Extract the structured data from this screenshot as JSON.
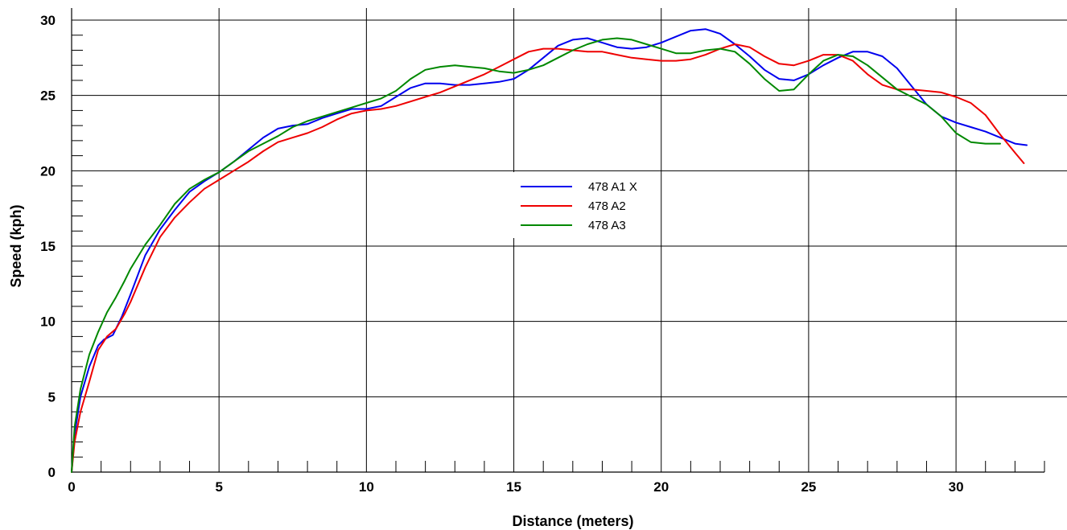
{
  "chart_data": {
    "type": "line",
    "title": "",
    "xlabel": "Distance (meters)",
    "ylabel": "Speed (kph)",
    "xlim": [
      0,
      33
    ],
    "ylim": [
      0,
      30
    ],
    "x_ticks": [
      0,
      5,
      10,
      15,
      20,
      25,
      30
    ],
    "y_ticks": [
      0,
      5,
      10,
      15,
      20,
      25,
      30
    ],
    "grid": true,
    "legend_position": "center",
    "series": [
      {
        "name": "478 A1 X",
        "color": "#0000ee",
        "points": [
          [
            0,
            0
          ],
          [
            0.1,
            2.5
          ],
          [
            0.3,
            5
          ],
          [
            0.6,
            7
          ],
          [
            0.9,
            8.4
          ],
          [
            1.1,
            8.8
          ],
          [
            1.4,
            9.1
          ],
          [
            1.7,
            10.3
          ],
          [
            2,
            11.8
          ],
          [
            2.5,
            14.4
          ],
          [
            3,
            16.1
          ],
          [
            3.5,
            17.4
          ],
          [
            4,
            18.6
          ],
          [
            4.5,
            19.3
          ],
          [
            5,
            19.9
          ],
          [
            5.5,
            20.6
          ],
          [
            6,
            21.4
          ],
          [
            6.5,
            22.2
          ],
          [
            7,
            22.8
          ],
          [
            7.5,
            23
          ],
          [
            8,
            23.1
          ],
          [
            8.5,
            23.5
          ],
          [
            9,
            23.8
          ],
          [
            9.5,
            24.1
          ],
          [
            10,
            24.1
          ],
          [
            10.5,
            24.3
          ],
          [
            11,
            24.9
          ],
          [
            11.5,
            25.5
          ],
          [
            12,
            25.8
          ],
          [
            12.5,
            25.8
          ],
          [
            13,
            25.7
          ],
          [
            13.5,
            25.7
          ],
          [
            14,
            25.8
          ],
          [
            14.5,
            25.9
          ],
          [
            15,
            26.1
          ],
          [
            15.5,
            26.7
          ],
          [
            16,
            27.5
          ],
          [
            16.5,
            28.3
          ],
          [
            17,
            28.7
          ],
          [
            17.5,
            28.8
          ],
          [
            18,
            28.5
          ],
          [
            18.5,
            28.2
          ],
          [
            19,
            28.1
          ],
          [
            19.5,
            28.2
          ],
          [
            20,
            28.5
          ],
          [
            20.5,
            28.9
          ],
          [
            21,
            29.3
          ],
          [
            21.5,
            29.4
          ],
          [
            22,
            29.1
          ],
          [
            22.5,
            28.4
          ],
          [
            23,
            27.6
          ],
          [
            23.5,
            26.7
          ],
          [
            24,
            26.1
          ],
          [
            24.5,
            26
          ],
          [
            25,
            26.4
          ],
          [
            25.5,
            27
          ],
          [
            26,
            27.5
          ],
          [
            26.5,
            27.9
          ],
          [
            27,
            27.9
          ],
          [
            27.5,
            27.6
          ],
          [
            28,
            26.8
          ],
          [
            28.5,
            25.6
          ],
          [
            29,
            24.4
          ],
          [
            29.5,
            23.6
          ],
          [
            30,
            23.2
          ],
          [
            30.5,
            22.9
          ],
          [
            31,
            22.6
          ],
          [
            31.5,
            22.2
          ],
          [
            32,
            21.8
          ],
          [
            32.4,
            21.7
          ]
        ]
      },
      {
        "name": "478 A2",
        "color": "#ee0000",
        "points": [
          [
            0,
            0
          ],
          [
            0.1,
            2
          ],
          [
            0.3,
            4
          ],
          [
            0.6,
            6
          ],
          [
            0.9,
            8.1
          ],
          [
            1.2,
            9
          ],
          [
            1.5,
            9.5
          ],
          [
            1.8,
            10.5
          ],
          [
            2,
            11.3
          ],
          [
            2.5,
            13.6
          ],
          [
            3,
            15.6
          ],
          [
            3.5,
            16.9
          ],
          [
            4,
            17.9
          ],
          [
            4.5,
            18.8
          ],
          [
            5,
            19.4
          ],
          [
            5.5,
            20
          ],
          [
            6,
            20.6
          ],
          [
            6.5,
            21.3
          ],
          [
            7,
            21.9
          ],
          [
            7.5,
            22.2
          ],
          [
            8,
            22.5
          ],
          [
            8.5,
            22.9
          ],
          [
            9,
            23.4
          ],
          [
            9.5,
            23.8
          ],
          [
            10,
            24
          ],
          [
            10.5,
            24.1
          ],
          [
            11,
            24.3
          ],
          [
            11.5,
            24.6
          ],
          [
            12,
            24.9
          ],
          [
            12.5,
            25.2
          ],
          [
            13,
            25.6
          ],
          [
            13.5,
            26
          ],
          [
            14,
            26.4
          ],
          [
            14.5,
            26.9
          ],
          [
            15,
            27.4
          ],
          [
            15.5,
            27.9
          ],
          [
            16,
            28.1
          ],
          [
            16.5,
            28.1
          ],
          [
            17,
            28
          ],
          [
            17.5,
            27.9
          ],
          [
            18,
            27.9
          ],
          [
            18.5,
            27.7
          ],
          [
            19,
            27.5
          ],
          [
            19.5,
            27.4
          ],
          [
            20,
            27.3
          ],
          [
            20.5,
            27.3
          ],
          [
            21,
            27.4
          ],
          [
            21.5,
            27.7
          ],
          [
            22,
            28.1
          ],
          [
            22.5,
            28.4
          ],
          [
            23,
            28.2
          ],
          [
            23.5,
            27.6
          ],
          [
            24,
            27.1
          ],
          [
            24.5,
            27
          ],
          [
            25,
            27.3
          ],
          [
            25.5,
            27.7
          ],
          [
            26,
            27.7
          ],
          [
            26.5,
            27.3
          ],
          [
            27,
            26.4
          ],
          [
            27.5,
            25.7
          ],
          [
            28,
            25.4
          ],
          [
            28.5,
            25.4
          ],
          [
            29,
            25.3
          ],
          [
            29.5,
            25.2
          ],
          [
            30,
            24.9
          ],
          [
            30.5,
            24.5
          ],
          [
            31,
            23.7
          ],
          [
            31.5,
            22.4
          ],
          [
            32,
            21.2
          ],
          [
            32.3,
            20.5
          ]
        ]
      },
      {
        "name": "478 A3",
        "color": "#008800",
        "points": [
          [
            0,
            0
          ],
          [
            0.1,
            3
          ],
          [
            0.3,
            5.5
          ],
          [
            0.6,
            7.8
          ],
          [
            0.9,
            9.3
          ],
          [
            1.2,
            10.6
          ],
          [
            1.5,
            11.6
          ],
          [
            1.8,
            12.7
          ],
          [
            2,
            13.5
          ],
          [
            2.5,
            15.1
          ],
          [
            3,
            16.4
          ],
          [
            3.5,
            17.8
          ],
          [
            4,
            18.8
          ],
          [
            4.5,
            19.4
          ],
          [
            5,
            19.9
          ],
          [
            5.5,
            20.6
          ],
          [
            6,
            21.3
          ],
          [
            6.5,
            21.8
          ],
          [
            7,
            22.3
          ],
          [
            7.5,
            22.9
          ],
          [
            8,
            23.3
          ],
          [
            8.5,
            23.6
          ],
          [
            9,
            23.9
          ],
          [
            9.5,
            24.2
          ],
          [
            10,
            24.5
          ],
          [
            10.5,
            24.8
          ],
          [
            11,
            25.3
          ],
          [
            11.5,
            26.1
          ],
          [
            12,
            26.7
          ],
          [
            12.5,
            26.9
          ],
          [
            13,
            27
          ],
          [
            13.5,
            26.9
          ],
          [
            14,
            26.8
          ],
          [
            14.5,
            26.6
          ],
          [
            15,
            26.5
          ],
          [
            15.5,
            26.7
          ],
          [
            16,
            27
          ],
          [
            16.5,
            27.5
          ],
          [
            17,
            28
          ],
          [
            17.5,
            28.4
          ],
          [
            18,
            28.7
          ],
          [
            18.5,
            28.8
          ],
          [
            19,
            28.7
          ],
          [
            19.5,
            28.4
          ],
          [
            20,
            28.1
          ],
          [
            20.5,
            27.8
          ],
          [
            21,
            27.8
          ],
          [
            21.5,
            28
          ],
          [
            22,
            28.1
          ],
          [
            22.5,
            27.9
          ],
          [
            23,
            27.1
          ],
          [
            23.5,
            26.1
          ],
          [
            24,
            25.3
          ],
          [
            24.5,
            25.4
          ],
          [
            25,
            26.4
          ],
          [
            25.5,
            27.3
          ],
          [
            26,
            27.7
          ],
          [
            26.5,
            27.6
          ],
          [
            27,
            27
          ],
          [
            27.5,
            26.2
          ],
          [
            28,
            25.4
          ],
          [
            28.5,
            24.9
          ],
          [
            29,
            24.4
          ],
          [
            29.5,
            23.6
          ],
          [
            30,
            22.5
          ],
          [
            30.5,
            21.9
          ],
          [
            31,
            21.8
          ],
          [
            31.5,
            21.8
          ]
        ]
      }
    ]
  }
}
